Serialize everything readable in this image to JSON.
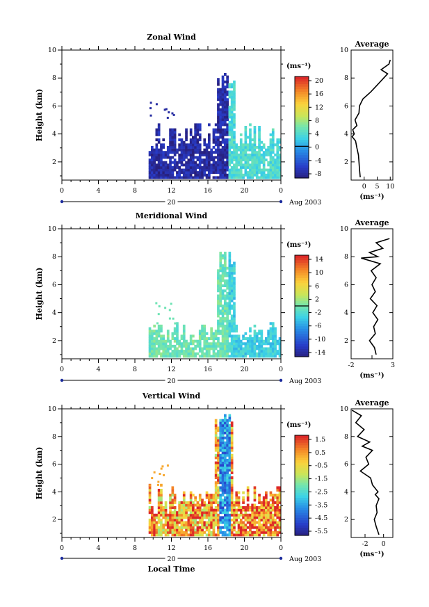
{
  "chart_data": [
    {
      "type": "heatmap",
      "title": "Zonal Wind",
      "ylabel": "Height (km)",
      "xticks": [
        "0",
        "4",
        "8",
        "12",
        "16",
        "20",
        "0"
      ],
      "yticks": [
        "2",
        "4",
        "6",
        "8",
        "10"
      ],
      "ylim": [
        0.7,
        10
      ],
      "xlim": [
        0,
        24
      ],
      "date_label": "20",
      "date_suffix": "Aug 2003",
      "colorbar": {
        "unit": "(ms⁻¹)",
        "ticks": [
          "20",
          "16",
          "12",
          "8",
          "4",
          "0",
          "-4",
          "-8"
        ],
        "range": [
          -10,
          22
        ],
        "zero_line": 0
      },
      "cells": {
        "start_hour": 9.5,
        "end_hour": 24,
        "top_height_km": 5.0,
        "spike_height_km": 8.6,
        "base_value": -8,
        "late_value": 4,
        "transition_hour": 18.0
      },
      "average": {
        "title": "Average",
        "xlabel": "(ms⁻¹)",
        "xticks": [
          "0",
          "5",
          "10"
        ],
        "yticks": [
          "2",
          "4",
          "6",
          "8",
          "10"
        ],
        "xlim": [
          -5,
          11
        ],
        "heights": [
          0.9,
          1.5,
          2,
          2.5,
          3,
          3.5,
          3.8,
          4.0,
          4.3,
          4.6,
          5.0,
          5.5,
          6.0,
          6.5,
          7.0,
          7.5,
          8.0,
          8.3,
          8.6,
          9.0,
          9.3
        ],
        "values": [
          -1.5,
          -1.8,
          -2.0,
          -2.2,
          -2.8,
          -3.3,
          -4.6,
          -3.8,
          -4.4,
          -2.8,
          -3.5,
          -2.0,
          -1.8,
          -0.5,
          2.5,
          5.0,
          7.5,
          9.0,
          6.5,
          9.5,
          10.0
        ]
      }
    },
    {
      "type": "heatmap",
      "title": "Meridional Wind",
      "ylabel": "Height (km)",
      "xticks": [
        "0",
        "4",
        "8",
        "12",
        "16",
        "20",
        "0"
      ],
      "yticks": [
        "2",
        "4",
        "6",
        "8",
        "10"
      ],
      "ylim": [
        0.7,
        10
      ],
      "xlim": [
        0,
        24
      ],
      "date_label": "20",
      "date_suffix": "Aug 2003",
      "colorbar": {
        "unit": "(ms⁻¹)",
        "ticks": [
          "14",
          "10",
          "6",
          "2",
          "-2",
          "-6",
          "-10",
          "-14"
        ],
        "range": [
          -16,
          16
        ],
        "zero_line": 0
      },
      "cells": {
        "start_hour": 9.5,
        "end_hour": 24,
        "top_height_km": 3.3,
        "spike_height_km": 8.3,
        "base_value": 0,
        "late_value": -3,
        "transition_hour": 18.0
      },
      "average": {
        "title": "Average",
        "xlabel": "(ms⁻¹)",
        "xticks": [
          "-2",
          "",
          "3"
        ],
        "yticks": [
          "2",
          "4",
          "6",
          "8",
          "10"
        ],
        "xlim": [
          -2,
          3
        ],
        "heights": [
          1.0,
          1.5,
          2.0,
          2.5,
          3.0,
          3.5,
          4.0,
          4.5,
          5.0,
          5.5,
          6.0,
          6.5,
          7.0,
          7.5,
          7.9,
          8.0,
          8.3,
          8.6,
          9.0,
          9.3
        ],
        "values": [
          1.0,
          0.8,
          0.2,
          0.9,
          0.7,
          1.2,
          0.6,
          1.1,
          0.3,
          0.9,
          0.5,
          1.0,
          0.4,
          1.5,
          -0.8,
          1.2,
          0.2,
          1.8,
          1.0,
          2.6
        ]
      }
    },
    {
      "type": "heatmap",
      "title": "Vertical Wind",
      "ylabel": "Height (km)",
      "xlabel": "Local Time",
      "xticks": [
        "0",
        "4",
        "8",
        "12",
        "16",
        "20",
        "0"
      ],
      "yticks": [
        "2",
        "4",
        "6",
        "8",
        "10"
      ],
      "ylim": [
        0.7,
        10
      ],
      "xlim": [
        0,
        24
      ],
      "date_label": "20",
      "date_suffix": "Aug 2003",
      "colorbar": {
        "unit": "(ms⁻¹)",
        "ticks": [
          "1.5",
          "0.5",
          "-0.5",
          "-1.5",
          "-2.5",
          "-3.5",
          "-4.5",
          "-5.5"
        ],
        "range": [
          -6,
          2
        ]
      },
      "cells": {
        "start_hour": 9.5,
        "end_hour": 24,
        "top_height_km": 4.5,
        "spike_height_km": 9.6,
        "base_value": 0.5,
        "late_value": 1.0,
        "transition_hour": 17.8
      },
      "average": {
        "title": "Average",
        "xlabel": "(ms⁻¹)",
        "xticks": [
          "-2",
          "0"
        ],
        "yticks": [
          "2",
          "4",
          "6",
          "8",
          "10"
        ],
        "xlim": [
          -3.5,
          1
        ],
        "heights": [
          0.9,
          1.5,
          2.0,
          2.5,
          3.0,
          3.5,
          3.8,
          4.0,
          4.5,
          5.0,
          5.5,
          6.0,
          6.5,
          7.0,
          7.3,
          7.6,
          8.0,
          8.5,
          9.0,
          9.5,
          9.9
        ],
        "values": [
          -0.5,
          -0.8,
          -1.0,
          -0.7,
          -0.8,
          -0.5,
          -0.9,
          -0.6,
          -1.2,
          -1.4,
          -2.5,
          -1.6,
          -1.9,
          -1.2,
          -2.3,
          -1.5,
          -2.8,
          -2.1,
          -3.0,
          -2.4,
          -3.4
        ]
      }
    }
  ]
}
